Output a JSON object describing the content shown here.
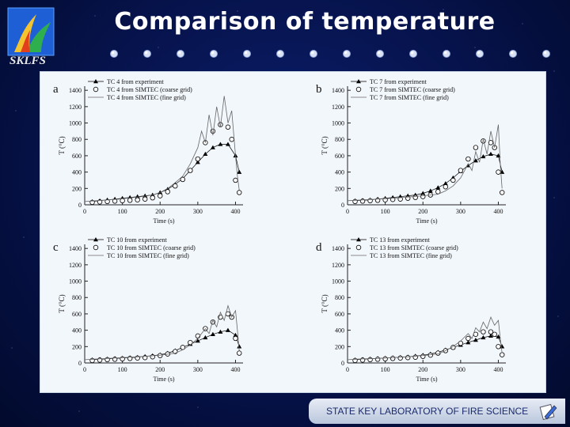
{
  "slide": {
    "title": "Comparison of temperature",
    "logo_text": "SKLFS",
    "footer": "STATE KEY LABORATORY OF FIRE SCIENCE"
  },
  "chart_data": [
    {
      "type": "line",
      "panel_label": "a",
      "xlabel": "Time (s)",
      "ylabel": "T (°C)",
      "xlim": [
        0,
        420
      ],
      "ylim": [
        0,
        1450
      ],
      "xticks": [
        0,
        100,
        200,
        300,
        400
      ],
      "yticks": [
        0,
        200,
        400,
        600,
        800,
        1000,
        1200,
        1400
      ],
      "legend_position": "top-left",
      "series": [
        {
          "name": "TC 4 from experiment",
          "style": "triangle",
          "x": [
            20,
            40,
            60,
            80,
            100,
            120,
            140,
            160,
            180,
            200,
            220,
            240,
            260,
            280,
            300,
            320,
            340,
            360,
            380,
            400,
            410
          ],
          "y": [
            40,
            50,
            60,
            70,
            80,
            90,
            100,
            110,
            120,
            150,
            190,
            250,
            320,
            420,
            520,
            620,
            700,
            740,
            740,
            600,
            400
          ]
        },
        {
          "name": "TC 4 from SIMTEC (coarse grid)",
          "style": "circle",
          "x": [
            20,
            40,
            60,
            80,
            100,
            120,
            140,
            160,
            180,
            200,
            220,
            240,
            260,
            280,
            300,
            320,
            340,
            360,
            380,
            390,
            400,
            410
          ],
          "y": [
            30,
            35,
            40,
            45,
            50,
            55,
            60,
            70,
            85,
            110,
            160,
            230,
            310,
            420,
            560,
            760,
            900,
            980,
            950,
            800,
            300,
            150
          ]
        },
        {
          "name": "TC 4 from SIMTEC (fine grid)",
          "style": "line",
          "x": [
            0,
            30,
            60,
            90,
            120,
            150,
            180,
            200,
            220,
            240,
            260,
            280,
            290,
            300,
            310,
            320,
            330,
            340,
            350,
            360,
            370,
            380,
            390,
            400,
            405,
            410
          ],
          "y": [
            40,
            50,
            60,
            70,
            85,
            100,
            120,
            150,
            200,
            270,
            350,
            500,
            600,
            700,
            900,
            760,
            1100,
            850,
            1200,
            950,
            1330,
            1000,
            1150,
            600,
            350,
            180
          ]
        }
      ]
    },
    {
      "type": "line",
      "panel_label": "b",
      "xlabel": "Time (s)",
      "ylabel": "T (°C)",
      "xlim": [
        0,
        420
      ],
      "ylim": [
        0,
        1450
      ],
      "xticks": [
        0,
        100,
        200,
        300,
        400
      ],
      "yticks": [
        0,
        200,
        400,
        600,
        800,
        1000,
        1200,
        1400
      ],
      "legend_position": "top-left",
      "series": [
        {
          "name": "TC 7 from experiment",
          "style": "triangle",
          "x": [
            20,
            40,
            60,
            80,
            100,
            120,
            140,
            160,
            180,
            200,
            220,
            240,
            260,
            280,
            300,
            320,
            340,
            360,
            380,
            400,
            410
          ],
          "y": [
            50,
            55,
            60,
            70,
            80,
            90,
            100,
            110,
            120,
            140,
            170,
            210,
            260,
            330,
            410,
            480,
            540,
            590,
            620,
            600,
            400
          ]
        },
        {
          "name": "TC 7 from SIMTEC (coarse grid)",
          "style": "circle",
          "x": [
            20,
            40,
            60,
            80,
            100,
            120,
            140,
            160,
            180,
            200,
            220,
            240,
            260,
            280,
            300,
            320,
            340,
            360,
            380,
            390,
            400,
            410
          ],
          "y": [
            40,
            45,
            50,
            55,
            60,
            65,
            70,
            80,
            90,
            100,
            120,
            160,
            220,
            300,
            420,
            560,
            700,
            780,
            760,
            700,
            400,
            150
          ]
        },
        {
          "name": "TC 7 from SIMTEC (fine grid)",
          "style": "line",
          "x": [
            0,
            40,
            80,
            120,
            160,
            200,
            240,
            260,
            280,
            300,
            320,
            330,
            340,
            350,
            360,
            370,
            380,
            390,
            400,
            405,
            410
          ],
          "y": [
            50,
            60,
            70,
            80,
            95,
            110,
            130,
            170,
            230,
            330,
            500,
            420,
            650,
            520,
            800,
            620,
            900,
            700,
            980,
            500,
            200
          ]
        }
      ]
    },
    {
      "type": "line",
      "panel_label": "c",
      "xlabel": "Time (s)",
      "ylabel": "T (°C)",
      "xlim": [
        0,
        420
      ],
      "ylim": [
        0,
        1450
      ],
      "xticks": [
        0,
        100,
        200,
        300,
        400
      ],
      "yticks": [
        0,
        200,
        400,
        600,
        800,
        1000,
        1200,
        1400
      ],
      "legend_position": "top-left",
      "series": [
        {
          "name": "TC 10 from experiment",
          "style": "triangle",
          "x": [
            20,
            40,
            60,
            80,
            100,
            120,
            140,
            160,
            180,
            200,
            220,
            240,
            260,
            280,
            300,
            320,
            340,
            360,
            380,
            400,
            410
          ],
          "y": [
            40,
            45,
            50,
            55,
            60,
            65,
            70,
            80,
            90,
            100,
            120,
            150,
            190,
            230,
            270,
            310,
            350,
            380,
            400,
            340,
            200
          ]
        },
        {
          "name": "TC 10 from SIMTEC (coarse grid)",
          "style": "circle",
          "x": [
            20,
            40,
            60,
            80,
            100,
            120,
            140,
            160,
            180,
            200,
            220,
            240,
            260,
            280,
            300,
            320,
            340,
            360,
            380,
            390,
            400,
            410
          ],
          "y": [
            30,
            35,
            40,
            45,
            50,
            55,
            60,
            65,
            75,
            90,
            110,
            140,
            190,
            250,
            330,
            420,
            500,
            560,
            600,
            560,
            300,
            120
          ]
        },
        {
          "name": "TC 10 from SIMTEC (fine grid)",
          "style": "line",
          "x": [
            0,
            40,
            80,
            120,
            160,
            200,
            240,
            260,
            280,
            300,
            320,
            330,
            340,
            350,
            360,
            370,
            380,
            390,
            400,
            405,
            410
          ],
          "y": [
            40,
            50,
            60,
            70,
            80,
            95,
            120,
            160,
            220,
            300,
            420,
            360,
            520,
            440,
            620,
            520,
            700,
            560,
            640,
            400,
            150
          ]
        }
      ]
    },
    {
      "type": "line",
      "panel_label": "d",
      "xlabel": "Time (s)",
      "ylabel": "T (°C)",
      "xlim": [
        0,
        420
      ],
      "ylim": [
        0,
        1450
      ],
      "xticks": [
        0,
        100,
        200,
        300,
        400
      ],
      "yticks": [
        0,
        200,
        400,
        600,
        800,
        1000,
        1200,
        1400
      ],
      "legend_position": "top-left",
      "series": [
        {
          "name": "TC 13 from experiment",
          "style": "triangle",
          "x": [
            20,
            40,
            60,
            80,
            100,
            120,
            140,
            160,
            180,
            200,
            220,
            240,
            260,
            280,
            300,
            320,
            340,
            360,
            380,
            400,
            410
          ],
          "y": [
            40,
            45,
            50,
            55,
            60,
            65,
            70,
            75,
            85,
            95,
            110,
            130,
            160,
            190,
            220,
            250,
            280,
            310,
            330,
            320,
            200
          ]
        },
        {
          "name": "TC 13 from SIMTEC (coarse grid)",
          "style": "circle",
          "x": [
            20,
            40,
            60,
            80,
            100,
            120,
            140,
            160,
            180,
            200,
            220,
            240,
            260,
            280,
            300,
            320,
            340,
            360,
            380,
            390,
            400,
            410
          ],
          "y": [
            30,
            35,
            40,
            45,
            50,
            55,
            60,
            65,
            70,
            80,
            95,
            120,
            150,
            190,
            240,
            300,
            350,
            380,
            380,
            350,
            200,
            100
          ]
        },
        {
          "name": "TC 13 from SIMTEC (fine grid)",
          "style": "line",
          "x": [
            0,
            40,
            80,
            120,
            160,
            200,
            240,
            260,
            280,
            300,
            320,
            330,
            340,
            350,
            360,
            370,
            380,
            390,
            400,
            405,
            410
          ],
          "y": [
            40,
            50,
            55,
            65,
            75,
            90,
            110,
            150,
            200,
            270,
            360,
            300,
            430,
            380,
            500,
            420,
            560,
            460,
            520,
            300,
            120
          ]
        }
      ]
    }
  ]
}
